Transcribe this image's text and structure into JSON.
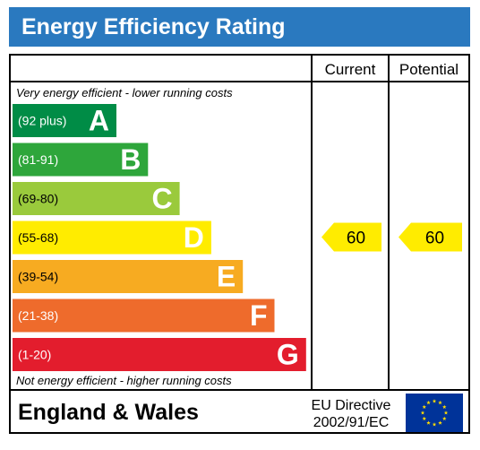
{
  "title": "Energy Efficiency Rating",
  "columns": {
    "current": "Current",
    "potential": "Potential"
  },
  "top_note": "Very energy efficient - lower running costs",
  "bottom_note": "Not energy efficient - higher running costs",
  "footer": {
    "region": "England & Wales",
    "directive_line1": "EU Directive",
    "directive_line2": "2002/91/EC"
  },
  "colors": {
    "title_bar": "#2a79bf",
    "arrow": "#ffec00"
  },
  "chart_data": {
    "type": "bar",
    "categories": [
      "A",
      "B",
      "C",
      "D",
      "E",
      "F",
      "G"
    ],
    "ranges": [
      "(92 plus)",
      "(81-91)",
      "(69-80)",
      "(55-68)",
      "(39-54)",
      "(21-38)",
      "(1-20)"
    ],
    "colors": [
      "#008c46",
      "#2ea63b",
      "#9aca3c",
      "#ffec00",
      "#f7ab21",
      "#ee6b2c",
      "#e31d2d"
    ],
    "current": {
      "value": 60,
      "label": "60",
      "band": "D"
    },
    "potential": {
      "value": 60,
      "label": "60",
      "band": "D"
    }
  }
}
